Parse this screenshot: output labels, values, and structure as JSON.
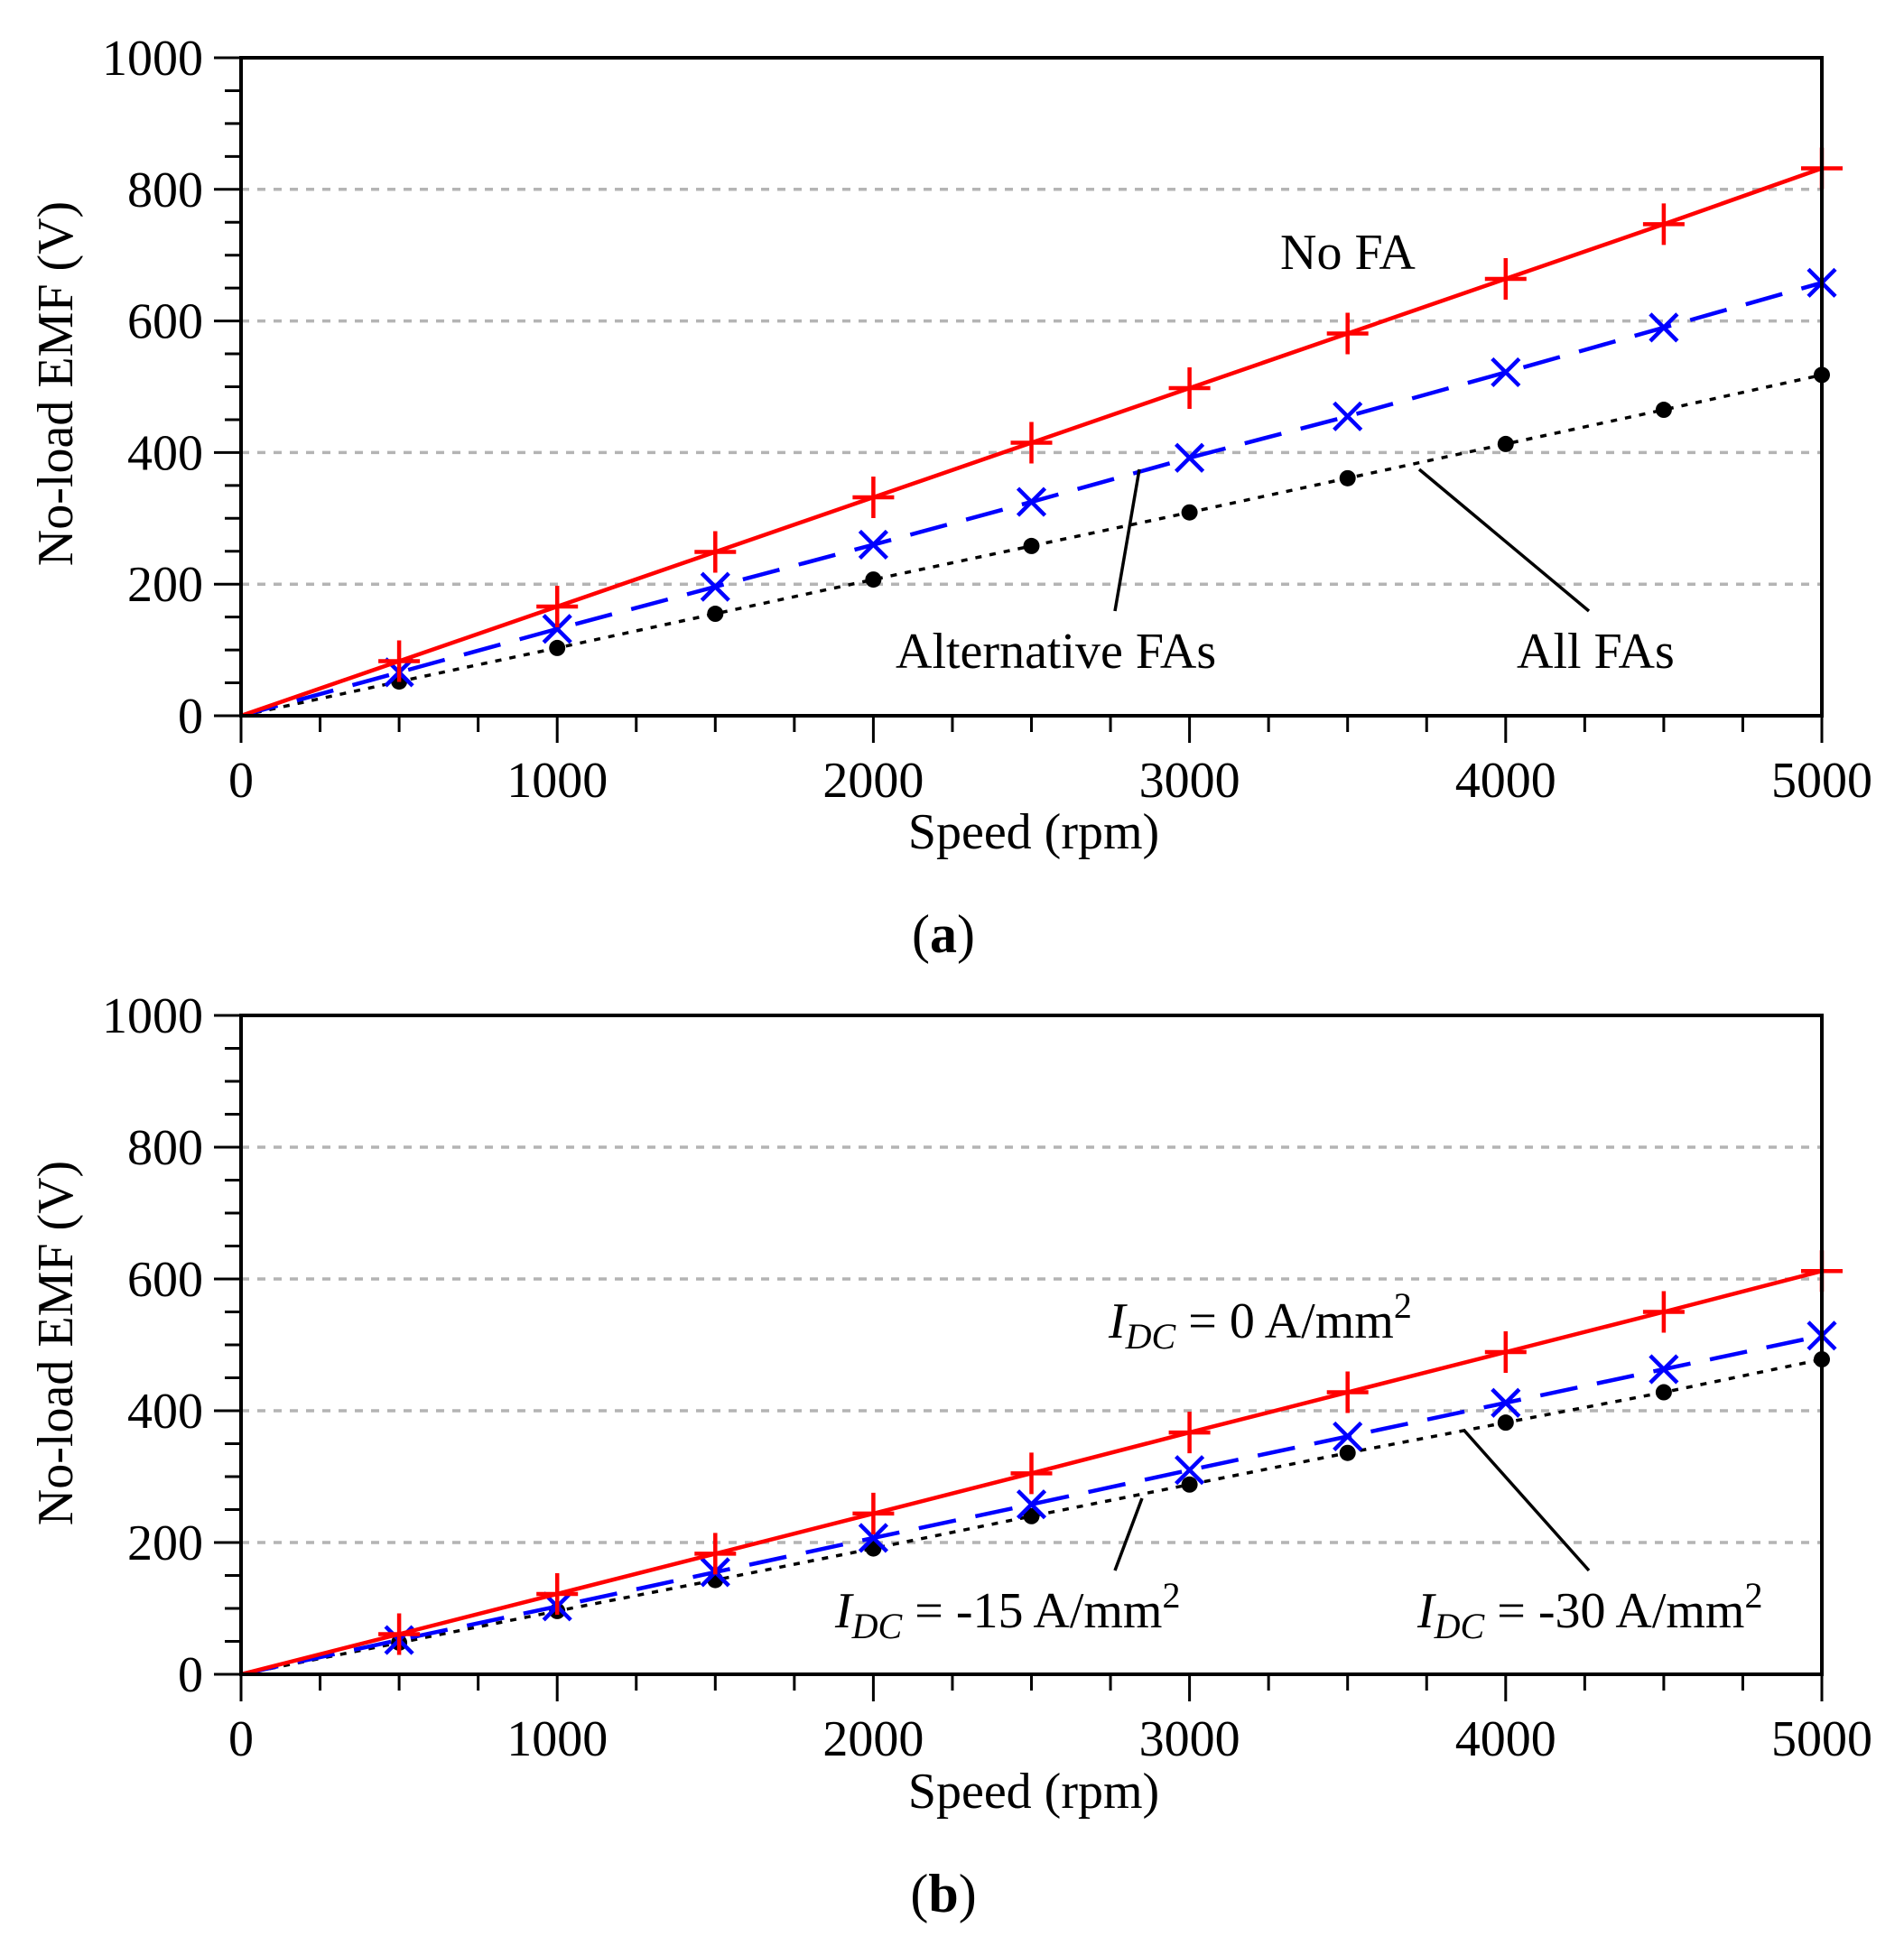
{
  "chart_data": [
    {
      "type": "line",
      "panel_label": "a",
      "xlabel": "Speed (rpm)",
      "ylabel": "No-load EMF (V)",
      "xlim": [
        0,
        5000
      ],
      "ylim": [
        0,
        1000
      ],
      "xticks": [
        "0",
        "1000",
        "2000",
        "3000",
        "4000",
        "5000"
      ],
      "yticks": [
        "0",
        "200",
        "400",
        "600",
        "800",
        "1000"
      ],
      "grid": "horizontal dashed",
      "x": [
        0,
        500,
        1000,
        1500,
        2000,
        2500,
        3000,
        3500,
        4000,
        4500,
        5000
      ],
      "series": [
        {
          "name": "No FA",
          "color": "#ff0000",
          "style": "solid",
          "marker": "plus",
          "values": [
            0,
            83,
            166,
            249,
            332,
            415,
            498,
            581,
            664,
            747,
            832
          ]
        },
        {
          "name": "Alternative FAs",
          "color": "#0000ff",
          "style": "dashed",
          "marker": "x",
          "values": [
            0,
            66,
            132,
            196,
            260,
            325,
            392,
            455,
            522,
            590,
            658
          ]
        },
        {
          "name": "All FAs",
          "color": "#000000",
          "style": "dotted",
          "marker": "dot",
          "values": [
            0,
            52,
            103,
            155,
            207,
            258,
            309,
            361,
            413,
            465,
            518
          ]
        }
      ],
      "annotations": [
        {
          "text": "No FA",
          "points_to": "No FA"
        },
        {
          "text": "Alternative FAs",
          "points_to": "Alternative FAs"
        },
        {
          "text": "All FAs",
          "points_to": "All FAs"
        }
      ]
    },
    {
      "type": "line",
      "panel_label": "b",
      "xlabel": "Speed (rpm)",
      "ylabel": "No-load EMF (V)",
      "xlim": [
        0,
        5000
      ],
      "ylim": [
        0,
        1000
      ],
      "xticks": [
        "0",
        "1000",
        "2000",
        "3000",
        "4000",
        "5000"
      ],
      "yticks": [
        "0",
        "200",
        "400",
        "600",
        "800",
        "1000"
      ],
      "grid": "horizontal dashed",
      "x": [
        0,
        500,
        1000,
        1500,
        2000,
        2500,
        3000,
        3500,
        4000,
        4500,
        5000
      ],
      "series": [
        {
          "name": "IDC = 0 A/mm2",
          "color": "#ff0000",
          "style": "solid",
          "marker": "plus",
          "values": [
            0,
            61,
            122,
            183,
            244,
            305,
            367,
            428,
            489,
            550,
            612
          ]
        },
        {
          "name": "IDC = -15 A/mm2",
          "color": "#0000ff",
          "style": "dashed",
          "marker": "x",
          "values": [
            0,
            52,
            103,
            155,
            207,
            258,
            310,
            361,
            412,
            463,
            514
          ]
        },
        {
          "name": "IDC = -30 A/mm2",
          "color": "#000000",
          "style": "dotted",
          "marker": "dot",
          "values": [
            0,
            48,
            96,
            143,
            191,
            240,
            288,
            336,
            382,
            428,
            478
          ]
        }
      ],
      "annotations": [
        {
          "i": "I",
          "sub": "DC",
          "rest": " = 0 A/mm",
          "sup": "2",
          "points_to": "IDC = 0 A/mm2"
        },
        {
          "i": "I",
          "sub": "DC",
          "rest": " = -15 A/mm",
          "sup": "2",
          "points_to": "IDC = -15 A/mm2"
        },
        {
          "i": "I",
          "sub": "DC",
          "rest": " = -30 A/mm",
          "sup": "2",
          "points_to": "IDC = -30 A/mm2"
        }
      ]
    }
  ]
}
